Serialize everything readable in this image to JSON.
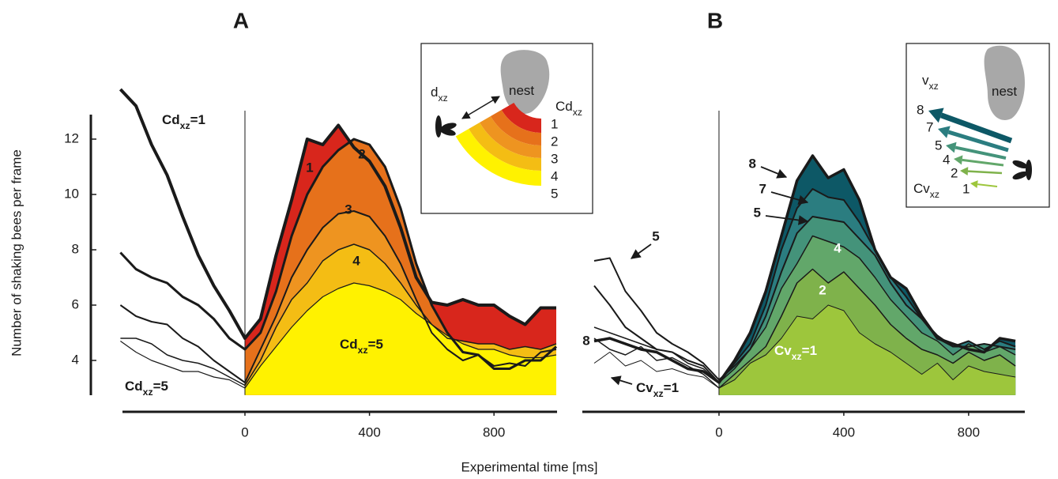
{
  "chart_data": [
    {
      "type": "area",
      "title": "A",
      "ylabel": "Number of shaking bees per frame",
      "xlabel": "Experimental time [ms]",
      "x": [
        -400,
        -350,
        -300,
        -250,
        -200,
        -150,
        -100,
        -50,
        0,
        50,
        100,
        150,
        200,
        250,
        300,
        350,
        400,
        450,
        500,
        550,
        600,
        650,
        700,
        750,
        800,
        850,
        900,
        950,
        1000
      ],
      "xlim": [
        -400,
        1000
      ],
      "ylim": [
        2.75,
        15
      ],
      "xticks": [
        0,
        400,
        800
      ],
      "yticks": [
        4,
        6,
        8,
        10,
        12
      ],
      "series": [
        {
          "name": "1",
          "color": "#d8261c",
          "values": [
            13.8,
            13.2,
            11.8,
            10.7,
            9.2,
            7.8,
            6.7,
            5.8,
            4.8,
            5.5,
            7.8,
            9.8,
            12.0,
            11.8,
            12.5,
            11.7,
            11.2,
            10.3,
            8.8,
            7.0,
            6.1,
            6.0,
            6.2,
            6.0,
            6.0,
            5.6,
            5.3,
            5.9,
            5.9
          ]
        },
        {
          "name": "2",
          "color": "#e6711b",
          "values": [
            7.9,
            7.3,
            7.0,
            6.8,
            6.3,
            6.0,
            5.5,
            4.8,
            4.4,
            5.0,
            6.5,
            8.5,
            10.0,
            11.0,
            11.6,
            12.0,
            11.8,
            11.0,
            9.5,
            7.5,
            6.0,
            5.0,
            4.3,
            4.2,
            3.7,
            3.7,
            4.0,
            4.0,
            4.5
          ]
        },
        {
          "name": "3",
          "color": "#ee9420",
          "values": [
            6.0,
            5.6,
            5.4,
            5.3,
            4.8,
            4.5,
            4.0,
            3.6,
            3.2,
            4.4,
            5.6,
            7.0,
            8.0,
            8.8,
            9.3,
            9.4,
            9.2,
            8.5,
            7.5,
            6.2,
            5.0,
            4.4,
            4.0,
            4.2,
            3.8,
            3.9,
            3.8,
            4.3,
            4.4
          ]
        },
        {
          "name": "4",
          "color": "#f4bd14",
          "values": [
            4.8,
            4.8,
            4.6,
            4.2,
            4.0,
            3.9,
            3.7,
            3.4,
            3.1,
            4.0,
            5.2,
            6.2,
            6.8,
            7.6,
            8.0,
            8.2,
            8.0,
            7.5,
            6.8,
            6.0,
            5.3,
            4.8,
            4.7,
            4.6,
            4.6,
            4.4,
            4.5,
            4.4,
            4.6
          ]
        },
        {
          "name": "5",
          "color": "#fff200",
          "values": [
            4.7,
            4.3,
            4.0,
            3.8,
            3.6,
            3.6,
            3.4,
            3.3,
            3.0,
            3.8,
            4.5,
            5.2,
            5.8,
            6.3,
            6.6,
            6.8,
            6.7,
            6.5,
            6.2,
            5.7,
            5.3,
            4.9,
            4.6,
            4.4,
            4.4,
            4.2,
            4.1,
            4.1,
            4.2
          ]
        }
      ],
      "annotations": [
        {
          "text": "Cd",
          "sub": "xz",
          "suffix": "=1"
        },
        {
          "text": "Cd",
          "sub": "xz",
          "suffix": "=5"
        },
        {
          "text": "Cd",
          "sub": "xz",
          "suffix": "=5"
        },
        {
          "text": "d",
          "sub": "xz"
        },
        {
          "text": "nest"
        },
        {
          "text": "Cd",
          "sub": "xz"
        }
      ]
    },
    {
      "type": "area",
      "title": "B",
      "x": [
        -400,
        -350,
        -300,
        -250,
        -200,
        -150,
        -100,
        -50,
        0,
        50,
        100,
        150,
        200,
        250,
        300,
        350,
        400,
        450,
        500,
        550,
        600,
        650,
        700,
        750,
        800,
        850,
        900,
        950
      ],
      "xlim": [
        -400,
        970
      ],
      "ylim": [
        2.75,
        15
      ],
      "xticks": [
        0,
        400,
        800
      ],
      "series": [
        {
          "name": "8",
          "color": "#0d5866",
          "values": [
            4.7,
            4.8,
            4.6,
            4.4,
            4.3,
            4.0,
            3.7,
            3.6,
            3.2,
            4.0,
            5.0,
            6.5,
            8.5,
            10.5,
            11.4,
            10.6,
            10.9,
            9.8,
            8.0,
            7.0,
            6.6,
            5.6,
            4.8,
            4.6,
            4.4,
            4.3,
            4.8,
            4.7
          ]
        },
        {
          "name": "7",
          "color": "#2b7d80",
          "values": [
            6.7,
            6.0,
            5.2,
            4.8,
            4.4,
            4.3,
            4.0,
            3.8,
            3.2,
            3.9,
            4.6,
            6.0,
            8.0,
            9.5,
            10.2,
            9.9,
            9.8,
            9.0,
            8.0,
            7.0,
            6.3,
            5.5,
            4.8,
            4.5,
            4.7,
            4.4,
            4.7,
            4.5
          ]
        },
        {
          "name": "5",
          "color": "#44937a",
          "values": [
            7.6,
            7.7,
            6.5,
            5.8,
            5.0,
            4.6,
            4.3,
            3.9,
            3.3,
            3.8,
            4.4,
            5.6,
            7.2,
            8.6,
            9.2,
            9.1,
            9.0,
            8.4,
            7.8,
            6.8,
            6.0,
            5.5,
            4.9,
            4.5,
            4.5,
            4.6,
            4.5,
            4.4
          ]
        },
        {
          "name": "4",
          "color": "#62a76a",
          "values": [
            5.2,
            5.0,
            4.8,
            4.6,
            4.4,
            4.3,
            3.9,
            3.7,
            3.2,
            3.7,
            4.4,
            5.2,
            6.6,
            7.5,
            8.5,
            8.3,
            8.1,
            7.7,
            7.0,
            6.2,
            5.6,
            5.0,
            4.7,
            4.2,
            4.6,
            4.3,
            4.5,
            4.2
          ]
        },
        {
          "name": "2",
          "color": "#7fb24b",
          "values": [
            4.8,
            4.4,
            4.2,
            4.5,
            4.0,
            4.1,
            3.8,
            3.5,
            3.0,
            3.5,
            4.0,
            4.5,
            5.6,
            6.8,
            7.3,
            6.8,
            7.2,
            6.6,
            6.0,
            5.3,
            4.8,
            4.4,
            4.2,
            3.9,
            4.3,
            4.0,
            4.2,
            3.8
          ]
        },
        {
          "name": "1",
          "color": "#9dc63c",
          "values": [
            3.9,
            4.3,
            3.8,
            4.0,
            3.6,
            3.7,
            3.5,
            3.4,
            3.0,
            3.3,
            3.9,
            4.2,
            4.8,
            5.6,
            5.5,
            6.0,
            5.8,
            5.0,
            4.6,
            4.3,
            3.9,
            3.5,
            3.9,
            3.3,
            3.8,
            3.6,
            3.5,
            3.4
          ]
        }
      ],
      "annotations": [
        {
          "text": "Cv",
          "sub": "xz",
          "suffix": "=1"
        },
        {
          "text": "Cv",
          "sub": "xz",
          "suffix": "=1"
        },
        {
          "text": "v",
          "sub": "xz"
        },
        {
          "text": "nest"
        },
        {
          "text": "Cv",
          "sub": "xz"
        }
      ]
    }
  ]
}
